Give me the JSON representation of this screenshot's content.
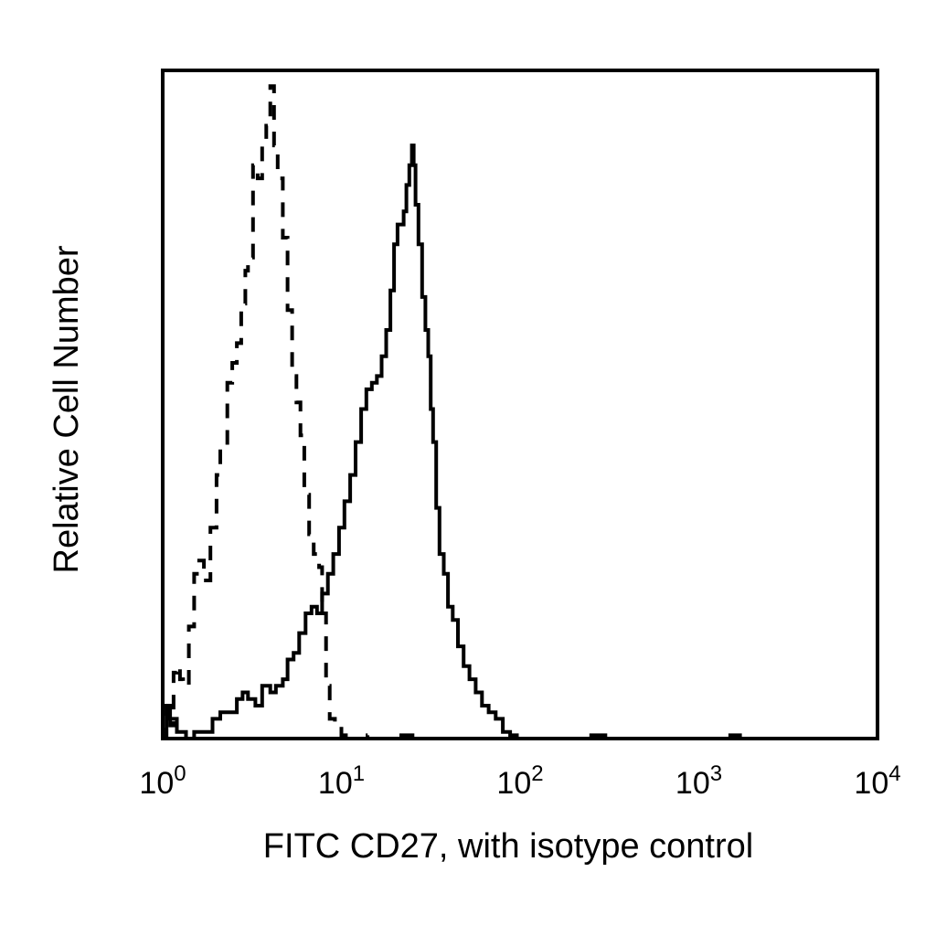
{
  "chart_data": {
    "type": "histogram",
    "xlabel": "FITC CD27, with isotype control",
    "ylabel": "Relative Cell Number",
    "x_scale": "log",
    "xlim": [
      1,
      10000
    ],
    "ylim": [
      0,
      100
    ],
    "ticks": [
      {
        "base": "10",
        "exp": "0",
        "value": 1
      },
      {
        "base": "10",
        "exp": "1",
        "value": 10
      },
      {
        "base": "10",
        "exp": "2",
        "value": 100
      },
      {
        "base": "10",
        "exp": "3",
        "value": 1000
      },
      {
        "base": "10",
        "exp": "4",
        "value": 10000
      }
    ],
    "grid": false,
    "legend": false,
    "series": [
      {
        "style": "dashed",
        "color": "#000000",
        "points": [
          [
            1.0,
            0
          ],
          [
            1.05,
            5
          ],
          [
            1.1,
            2
          ],
          [
            1.15,
            10
          ],
          [
            1.2,
            11
          ],
          [
            1.25,
            9
          ],
          [
            1.3,
            8
          ],
          [
            1.4,
            17
          ],
          [
            1.5,
            25
          ],
          [
            1.6,
            27
          ],
          [
            1.7,
            24
          ],
          [
            1.85,
            32
          ],
          [
            2.0,
            40
          ],
          [
            2.1,
            44
          ],
          [
            2.3,
            54
          ],
          [
            2.45,
            57
          ],
          [
            2.6,
            60
          ],
          [
            2.75,
            66
          ],
          [
            2.9,
            71
          ],
          [
            3.0,
            73
          ],
          [
            3.2,
            87
          ],
          [
            3.4,
            85
          ],
          [
            3.6,
            90
          ],
          [
            3.8,
            93
          ],
          [
            4.0,
            99
          ],
          [
            4.2,
            90
          ],
          [
            4.4,
            85
          ],
          [
            4.7,
            76
          ],
          [
            5.0,
            65
          ],
          [
            5.3,
            55
          ],
          [
            5.6,
            51
          ],
          [
            5.9,
            46
          ],
          [
            6.2,
            37
          ],
          [
            6.6,
            31
          ],
          [
            7.0,
            28
          ],
          [
            7.5,
            26
          ],
          [
            7.8,
            19
          ],
          [
            8.2,
            8
          ],
          [
            8.6,
            3
          ],
          [
            9.2,
            2
          ],
          [
            10,
            0.5
          ],
          [
            12,
            0
          ],
          [
            14,
            0.5
          ],
          [
            16,
            0
          ],
          [
            20,
            0.5
          ],
          [
            25,
            0
          ]
        ]
      },
      {
        "style": "solid",
        "color": "#000000",
        "points": [
          [
            1.0,
            0
          ],
          [
            1.05,
            5
          ],
          [
            1.1,
            3
          ],
          [
            1.2,
            1
          ],
          [
            1.35,
            0
          ],
          [
            1.5,
            1
          ],
          [
            1.7,
            1
          ],
          [
            1.9,
            3
          ],
          [
            2.1,
            4
          ],
          [
            2.3,
            4
          ],
          [
            2.6,
            6
          ],
          [
            2.8,
            7
          ],
          [
            3.0,
            6
          ],
          [
            3.3,
            5
          ],
          [
            3.6,
            8
          ],
          [
            4.0,
            7
          ],
          [
            4.3,
            8
          ],
          [
            4.7,
            9
          ],
          [
            5.0,
            12
          ],
          [
            5.4,
            13
          ],
          [
            5.8,
            16
          ],
          [
            6.3,
            19
          ],
          [
            6.8,
            20
          ],
          [
            7.3,
            19
          ],
          [
            7.8,
            22
          ],
          [
            8.4,
            25
          ],
          [
            9.0,
            28
          ],
          [
            9.7,
            32
          ],
          [
            10.4,
            36
          ],
          [
            11.2,
            40
          ],
          [
            12.0,
            45
          ],
          [
            12.9,
            50
          ],
          [
            13.8,
            53
          ],
          [
            14.8,
            54
          ],
          [
            15.8,
            55
          ],
          [
            16.8,
            58
          ],
          [
            17.8,
            62
          ],
          [
            18.8,
            68
          ],
          [
            19.7,
            75
          ],
          [
            20.6,
            78
          ],
          [
            21.5,
            78
          ],
          [
            22.3,
            80
          ],
          [
            23.1,
            84
          ],
          [
            24.0,
            87
          ],
          [
            24.8,
            90
          ],
          [
            25.4,
            87
          ],
          [
            26.0,
            81
          ],
          [
            27.0,
            75
          ],
          [
            28.3,
            67
          ],
          [
            29.5,
            62
          ],
          [
            30.6,
            58
          ],
          [
            31.6,
            50
          ],
          [
            32.6,
            45
          ],
          [
            33.9,
            35
          ],
          [
            35.4,
            28
          ],
          [
            37.4,
            25
          ],
          [
            39.5,
            20
          ],
          [
            42.0,
            18
          ],
          [
            44.9,
            14
          ],
          [
            48.3,
            11
          ],
          [
            52.1,
            9
          ],
          [
            56.4,
            7
          ],
          [
            61.2,
            5
          ],
          [
            66.7,
            4
          ],
          [
            73.0,
            3
          ],
          [
            80.0,
            1
          ],
          [
            88.0,
            0.5
          ],
          [
            96.0,
            0
          ],
          [
            250,
            0.5
          ],
          [
            300,
            0
          ],
          [
            1500,
            0.5
          ],
          [
            1700,
            0
          ],
          [
            10000,
            0
          ]
        ]
      }
    ]
  }
}
